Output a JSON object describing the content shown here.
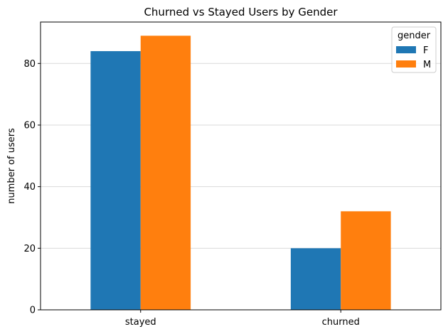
{
  "chart_data": {
    "type": "bar",
    "title": "Churned vs Stayed Users by Gender",
    "xlabel": "",
    "ylabel": "number of users",
    "categories": [
      "stayed",
      "churned"
    ],
    "series": [
      {
        "name": "F",
        "values": [
          84,
          20
        ],
        "color": "#1f77b4"
      },
      {
        "name": "M",
        "values": [
          89,
          32
        ],
        "color": "#ff7f0e"
      }
    ],
    "ylim": [
      0,
      93.45
    ],
    "yticks": [
      0,
      20,
      40,
      60,
      80
    ],
    "grid": true,
    "legend": {
      "title": "gender",
      "placement": "top-right"
    }
  }
}
